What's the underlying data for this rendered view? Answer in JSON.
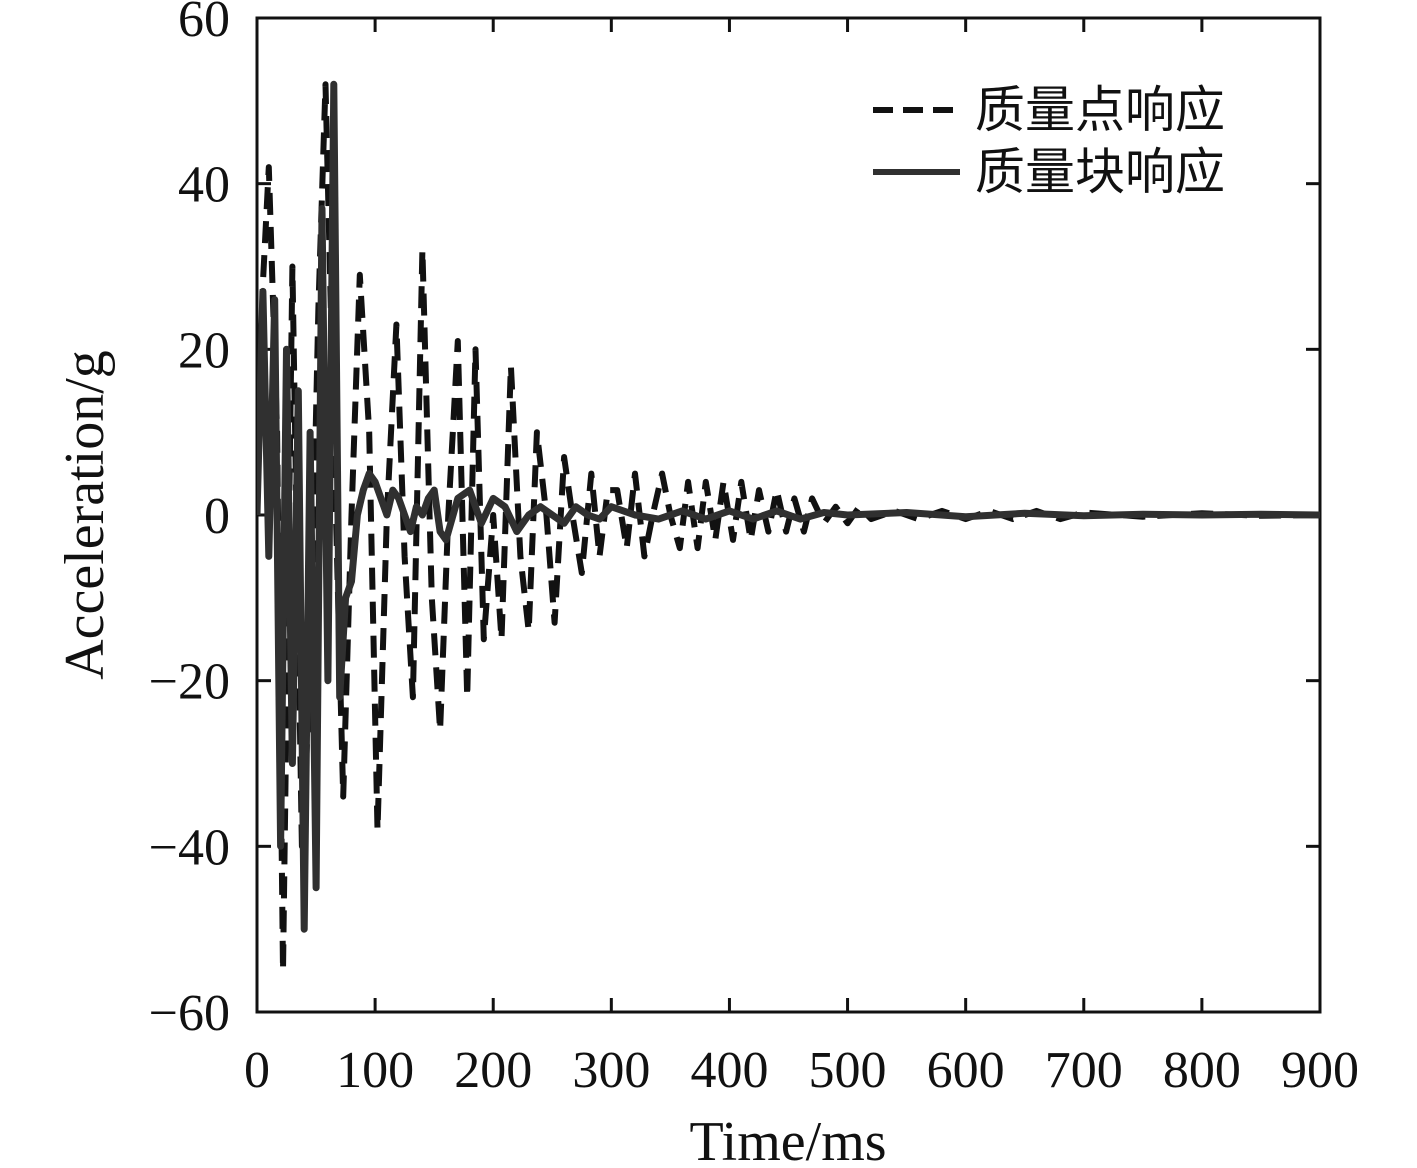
{
  "chart_data": {
    "type": "line",
    "xlabel": "Time/ms",
    "ylabel": "Acceleration/g",
    "xlim": [
      0,
      900
    ],
    "ylim": [
      -60,
      60
    ],
    "xticks": [
      0,
      100,
      200,
      300,
      400,
      500,
      600,
      700,
      800,
      900
    ],
    "yticks": [
      -60,
      -40,
      -20,
      0,
      20,
      40,
      60
    ],
    "xtick_labels": [
      "0",
      "100",
      "200",
      "300",
      "400",
      "500",
      "600",
      "700",
      "800",
      "900"
    ],
    "ytick_labels": [
      "−60",
      "−40",
      "−20",
      "0",
      "20",
      "40",
      "60"
    ],
    "grid": false,
    "legend_position": "top-right",
    "series": [
      {
        "name": "质量点响应",
        "style": "dashed",
        "color": "#111111",
        "x": [
          0,
          5,
          10,
          17,
          22,
          30,
          38,
          45,
          52,
          58,
          65,
          73,
          80,
          87,
          95,
          102,
          110,
          118,
          125,
          132,
          140,
          148,
          155,
          162,
          170,
          178,
          185,
          192,
          200,
          207,
          215,
          223,
          230,
          237,
          245,
          252,
          260,
          267,
          275,
          283,
          290,
          297,
          305,
          313,
          320,
          328,
          335,
          343,
          350,
          358,
          365,
          373,
          380,
          388,
          395,
          403,
          410,
          418,
          425,
          433,
          440,
          448,
          455,
          463,
          470,
          480,
          490,
          500,
          510,
          520,
          540,
          560,
          580,
          600,
          620,
          640,
          660,
          680,
          700,
          750,
          800,
          850,
          900
        ],
        "y": [
          0,
          28,
          42,
          10,
          -55,
          30,
          -40,
          -20,
          25,
          52,
          10,
          -34,
          0,
          29,
          10,
          -38,
          0,
          23,
          -5,
          -22,
          32,
          -10,
          -26,
          0,
          21,
          -22,
          20,
          -15,
          0,
          -15,
          18,
          -5,
          -14,
          10,
          0,
          -13,
          7,
          0,
          -7,
          5,
          -5,
          3,
          3,
          -4,
          5,
          -5,
          0,
          5,
          0,
          -4,
          4,
          -4,
          4,
          -3,
          4,
          -3,
          4,
          -3,
          3,
          -2,
          3,
          -2,
          2,
          -2,
          2,
          -1,
          1,
          -1,
          1,
          -0.5,
          0.5,
          -0.5,
          0.5,
          -0.5,
          0.5,
          -0.5,
          0.5,
          -0.5,
          0.3,
          -0.2,
          0.2,
          -0.1,
          0
        ]
      },
      {
        "name": "质量块响应",
        "style": "solid",
        "color": "#303030",
        "x": [
          0,
          5,
          10,
          15,
          20,
          25,
          30,
          35,
          40,
          45,
          50,
          55,
          60,
          65,
          70,
          75,
          80,
          85,
          90,
          95,
          100,
          105,
          110,
          115,
          120,
          125,
          130,
          135,
          140,
          145,
          150,
          155,
          160,
          170,
          180,
          190,
          200,
          210,
          220,
          230,
          240,
          250,
          260,
          270,
          280,
          290,
          300,
          320,
          340,
          360,
          380,
          400,
          420,
          440,
          460,
          480,
          500,
          550,
          600,
          650,
          700,
          750,
          800,
          850,
          900
        ],
        "y": [
          0,
          27,
          -5,
          26,
          -40,
          20,
          -30,
          15,
          -50,
          10,
          -45,
          37,
          -20,
          52,
          -22,
          -10,
          -8,
          0,
          3,
          5,
          4,
          2,
          0,
          3,
          2,
          0,
          -2,
          1,
          0,
          2,
          3,
          -2,
          -3,
          2,
          3,
          -1,
          2,
          1,
          -2,
          0,
          1,
          0,
          -1,
          1,
          0,
          -0.5,
          1,
          0,
          -0.5,
          0.5,
          -0.5,
          0.5,
          -0.5,
          0.5,
          -0.5,
          0.3,
          0,
          0.3,
          -0.2,
          0.2,
          -0.1,
          0.1,
          0,
          0.1,
          0
        ]
      }
    ]
  }
}
